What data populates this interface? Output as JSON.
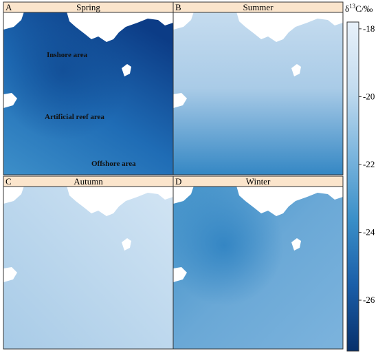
{
  "panels": [
    {
      "letter": "A",
      "season": "Spring",
      "annotations": [
        "Inshore area",
        "Artificial reef area",
        "Offshore area"
      ]
    },
    {
      "letter": "B",
      "season": "Summer"
    },
    {
      "letter": "C",
      "season": "Autumn"
    },
    {
      "letter": "D",
      "season": "Winter"
    }
  ],
  "colorbar": {
    "label": {
      "symbol": "δ",
      "superscript": "13",
      "unit": "C/‰"
    },
    "clim": [
      -27.5,
      -17.8
    ],
    "ticks": [
      -18,
      -20,
      -22,
      -24,
      -26
    ],
    "colormap": [
      "#08306b",
      "#1a5ea8",
      "#3a8fc8",
      "#7db6de",
      "#c4dcef",
      "#e8f1fa"
    ]
  }
}
